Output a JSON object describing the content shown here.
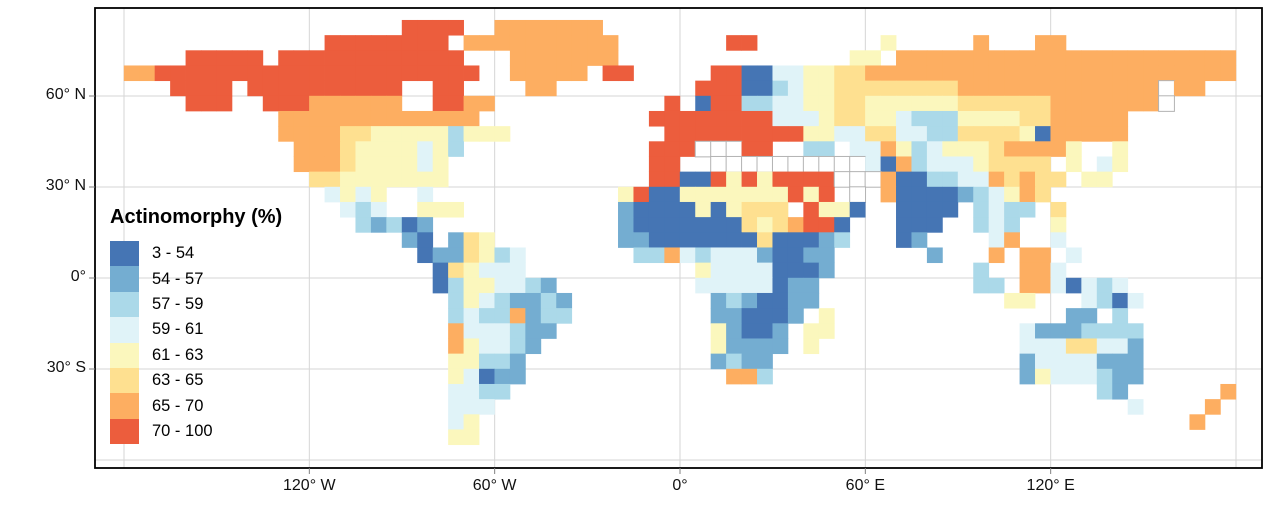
{
  "page": {
    "background": "#ffffff"
  },
  "legend": {
    "title": "Actinomorphy (%)",
    "bins": [
      {
        "label": "3 - 54",
        "color": "#4575b4"
      },
      {
        "label": "54 - 57",
        "color": "#74add1"
      },
      {
        "label": "57 - 59",
        "color": "#abd9e9"
      },
      {
        "label": "59 - 61",
        "color": "#e0f3f8"
      },
      {
        "label": "61 - 63",
        "color": "#fbf7bd"
      },
      {
        "label": "63 - 65",
        "color": "#fee090"
      },
      {
        "label": "65 - 70",
        "color": "#fdae61"
      },
      {
        "label": "70 - 100",
        "color": "#ec5d3d"
      }
    ]
  },
  "axes": {
    "lat_ticks": [
      {
        "label": "60° N",
        "lat": 60
      },
      {
        "label": "30° N",
        "lat": 30
      },
      {
        "label": "0°",
        "lat": 0
      },
      {
        "label": "30° S",
        "lat": -30
      }
    ],
    "lon_ticks": [
      {
        "label": "120° W",
        "lon": -120
      },
      {
        "label": "60° W",
        "lon": -60
      },
      {
        "label": "0°",
        "lon": 0
      },
      {
        "label": "60° E",
        "lon": 60
      },
      {
        "label": "120° E",
        "lon": 120
      }
    ],
    "grid_lons": [
      -180,
      -120,
      -60,
      0,
      60,
      120,
      180
    ],
    "grid_lats": [
      60,
      30,
      0,
      -30,
      -60
    ],
    "grid_color": "#d6d6d6",
    "frame_color": "#000000",
    "tick_color": "#808080"
  },
  "map": {
    "type": "choropleth",
    "projection": "equirectangular",
    "cell_degrees": 5,
    "extent": {
      "lon_min": -180,
      "lon_max": 180,
      "lat_min": -60,
      "lat_max": 90
    },
    "ocean_color": "#ffffff",
    "nodata_color": "#ffffff",
    "nodata_border": "#b3b3b3",
    "legend_chars": "01234567",
    "rows": [
      "........................................................................",
      "..................7777..6666666.........................................",
      ".............77777777.6666666666.......77........4.....6...66...........",
      "....77777.777777777777...6666666...............44.6666666666666666666666",
      "66777777777777777777777..66666.77.....7700334455666666666666666666666666",
      "...7777.7777777777..77....66.........777002344555555556666666666666w66..",
      "....777..777666666..7766...........7.077223344554444445555556666666w....",
      "..........6666666666666...........7777777733345544322244445566666.......",
      "..........666655444442444..........777777777443355332255554066666.......",
      "...........66654444342............777www77..22.336423444566664..4.......",
      "...........6665444434.............77..wwwwwwwwww306233345555.4.34.......",
      "............554444444.............770074747777www600223365655.44........",
      ".............3434..3............47004444444747.w.60000123465............",
      "..............323..444..........10000404555.7440..0000.2322.5...........",
      "...............21201............100000005456770...000..232..4...........",
      "..................10.154........110000000500012...01....36..3...........",
      "...................0115423.......2263233310011......1...6.66.3..........",
      "....................054333...........433330001.........2..663...........",
      "....................02443321.........33333011..........22.6630323.......",
      ".....................24321121.........1210011............44...3203......",
      ".....................23226122.........110001.4...............11.2.......",
      ".....................6333211..........41001.44............31112222......",
      ".....................643321...........41111.4.............33355331......",
      ".....................44221............1211................13333111......",
      ".....................43011.............662................14333211......",
      ".....................3322......................................21......6",
      ".....................333.........................................3....6.",
      ".....................34..............................................6..",
      ".....................44.................................................",
      "........................................................................"
    ]
  },
  "chart_data": {
    "type": "heatmap",
    "title": "Actinomorphy (%)",
    "legend_bins": [
      "3 - 54",
      "54 - 57",
      "57 - 59",
      "59 - 61",
      "61 - 63",
      "63 - 65",
      "65 - 70",
      "70 - 100"
    ],
    "bin_colors": [
      "#4575b4",
      "#74add1",
      "#abd9e9",
      "#e0f3f8",
      "#fbf7bd",
      "#fee090",
      "#fdae61",
      "#ec5d3d"
    ],
    "x_tick_labels": [
      "120° W",
      "60° W",
      "0°",
      "60° E",
      "120° E"
    ],
    "y_tick_labels": [
      "60° N",
      "30° N",
      "0°",
      "30° S"
    ],
    "encoding": "World choropleth; raster in map.rows at 5-degree cells, chars 0-7 = bins low to high, w = no data (white, gray border), . = ocean"
  }
}
